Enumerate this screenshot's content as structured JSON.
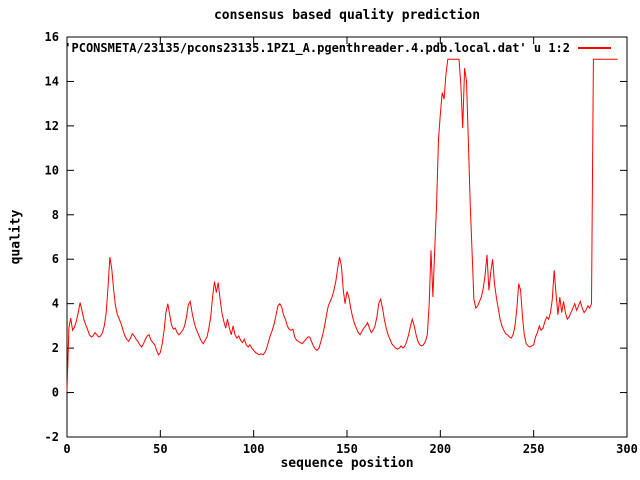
{
  "title": "consensus based quality prediction",
  "colors": {
    "line": "#ff0000",
    "text": "#000000",
    "background": "#ffffff"
  },
  "legend": {
    "label": "'PCONSMETA/23135/pcons23135.1PZ1_A.pgenthreader.4.pdb.local.dat' u 1:2"
  },
  "chart_data": {
    "type": "line",
    "title": "consensus based quality prediction",
    "xlabel": "sequence position",
    "ylabel": "quality",
    "xlim": [
      0,
      300
    ],
    "ylim": [
      -2,
      16
    ],
    "x_ticks": [
      0,
      50,
      100,
      150,
      200,
      250,
      300
    ],
    "y_ticks": [
      -2,
      0,
      2,
      4,
      6,
      8,
      10,
      12,
      14,
      16
    ],
    "grid": false,
    "legend_position": "top-right-inside",
    "series": [
      {
        "name": "'PCONSMETA/23135/pcons23135.1PZ1_A.pgenthreader.4.pdb.local.dat' u 1:2",
        "color": "#ff0000",
        "x_start": 0,
        "x_step": 1,
        "values": [
          0.05,
          2.9,
          3.35,
          2.8,
          2.95,
          3.2,
          3.6,
          4.05,
          3.7,
          3.3,
          3.05,
          2.85,
          2.6,
          2.5,
          2.55,
          2.7,
          2.6,
          2.5,
          2.55,
          2.7,
          3.0,
          3.6,
          4.8,
          6.1,
          5.55,
          4.6,
          3.9,
          3.5,
          3.3,
          3.1,
          2.8,
          2.55,
          2.4,
          2.3,
          2.45,
          2.65,
          2.55,
          2.4,
          2.3,
          2.15,
          2.05,
          2.2,
          2.4,
          2.55,
          2.6,
          2.35,
          2.25,
          2.15,
          1.9,
          1.7,
          1.8,
          2.2,
          2.8,
          3.6,
          4.0,
          3.5,
          3.05,
          2.85,
          2.9,
          2.7,
          2.6,
          2.7,
          2.8,
          3.0,
          3.4,
          3.95,
          4.1,
          3.6,
          3.2,
          2.9,
          2.7,
          2.5,
          2.3,
          2.2,
          2.35,
          2.5,
          2.9,
          3.4,
          4.3,
          5.0,
          4.5,
          4.95,
          4.2,
          3.6,
          3.2,
          2.9,
          3.3,
          2.9,
          2.6,
          3.0,
          2.6,
          2.45,
          2.55,
          2.35,
          2.25,
          2.4,
          2.15,
          2.05,
          2.15,
          2.0,
          1.9,
          1.8,
          1.75,
          1.7,
          1.75,
          1.7,
          1.8,
          2.0,
          2.3,
          2.6,
          2.8,
          3.1,
          3.5,
          3.9,
          4.0,
          3.85,
          3.5,
          3.3,
          3.0,
          2.85,
          2.8,
          2.85,
          2.5,
          2.35,
          2.3,
          2.25,
          2.2,
          2.3,
          2.4,
          2.5,
          2.5,
          2.3,
          2.1,
          1.95,
          1.9,
          2.0,
          2.3,
          2.6,
          3.0,
          3.5,
          3.9,
          4.1,
          4.3,
          4.6,
          5.0,
          5.6,
          6.1,
          5.7,
          4.6,
          4.0,
          4.55,
          4.3,
          3.8,
          3.4,
          3.1,
          2.9,
          2.7,
          2.6,
          2.75,
          2.9,
          3.0,
          3.15,
          2.9,
          2.7,
          2.8,
          3.0,
          3.4,
          4.0,
          4.2,
          3.8,
          3.3,
          2.9,
          2.6,
          2.4,
          2.2,
          2.1,
          2.0,
          1.95,
          2.0,
          2.1,
          2.0,
          2.1,
          2.3,
          2.6,
          3.0,
          3.3,
          3.0,
          2.6,
          2.3,
          2.15,
          2.1,
          2.15,
          2.3,
          2.6,
          3.9,
          6.4,
          4.3,
          6.4,
          8.5,
          11.4,
          12.5,
          13.5,
          13.2,
          14.3,
          15,
          15,
          15,
          15,
          15,
          15,
          15,
          13.8,
          11.9,
          14.6,
          14.0,
          11.4,
          8.5,
          6.3,
          4.2,
          3.8,
          3.9,
          4.1,
          4.3,
          4.7,
          5.3,
          6.2,
          4.6,
          5.4,
          6.0,
          4.9,
          4.3,
          3.8,
          3.3,
          3.0,
          2.8,
          2.65,
          2.6,
          2.5,
          2.45,
          2.6,
          3.0,
          3.8,
          4.9,
          4.6,
          3.4,
          2.6,
          2.2,
          2.1,
          2.05,
          2.1,
          2.15,
          2.5,
          2.7,
          3.0,
          2.8,
          2.9,
          3.2,
          3.4,
          3.3,
          3.6,
          4.2,
          5.5,
          4.4,
          3.5,
          4.3,
          3.6,
          4.1,
          3.6,
          3.3,
          3.4,
          3.6,
          3.8,
          4.0,
          3.7,
          3.9,
          4.1,
          3.8,
          3.6,
          3.7,
          3.9,
          3.8,
          4.0,
          15,
          15,
          15,
          15,
          15,
          15,
          15,
          15,
          15,
          15,
          15,
          15,
          15,
          15
        ]
      }
    ]
  }
}
